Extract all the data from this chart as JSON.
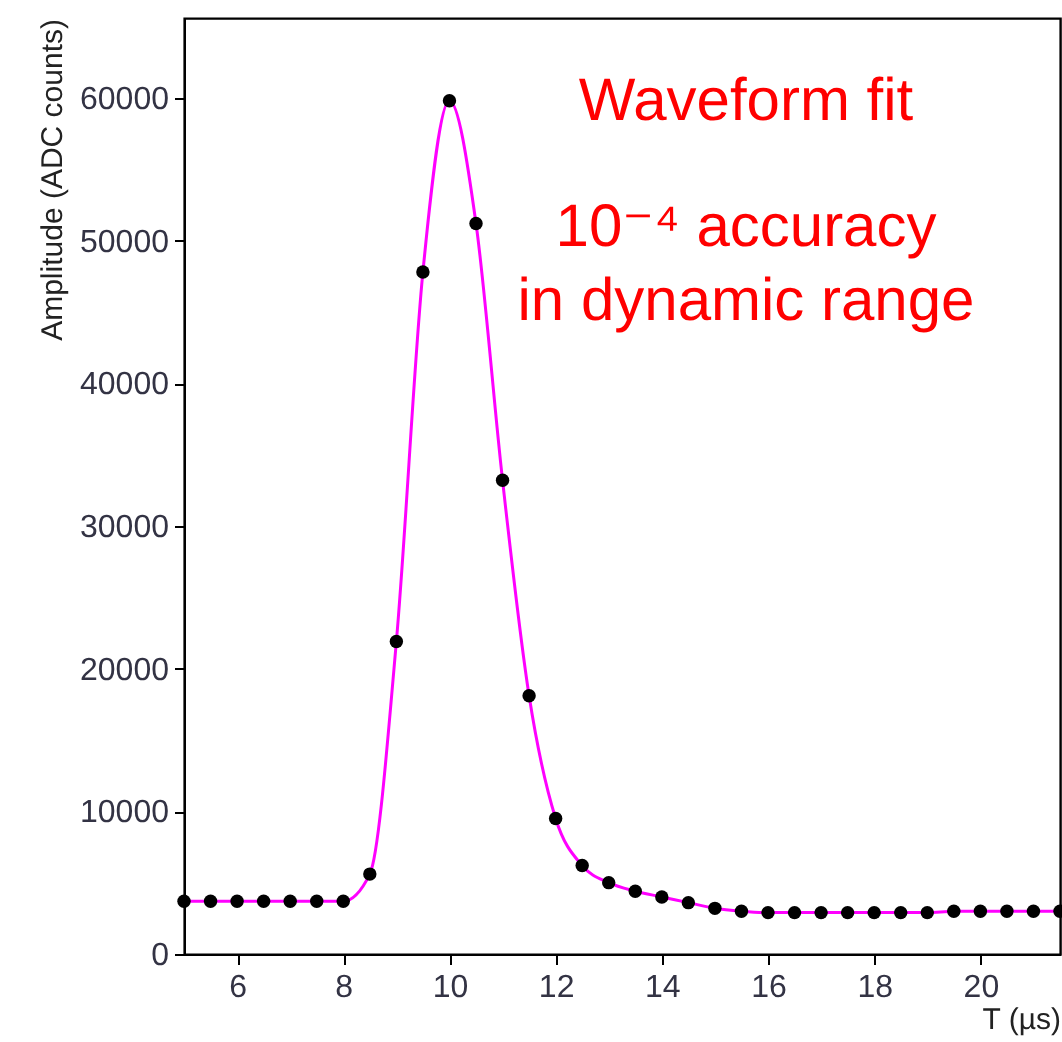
{
  "chart_data": {
    "type": "scatter",
    "xlabel": "T (µs)",
    "ylabel": "Amplitude (ADC counts)",
    "annotations": [
      "Waveform fit",
      "10⁻⁴ accuracy",
      "in dynamic range"
    ],
    "x": [
      5,
      5.5,
      6,
      6.5,
      7,
      7.5,
      8,
      8.5,
      9,
      9.5,
      10,
      10.5,
      11,
      11.5,
      12,
      12.5,
      13,
      13.5,
      14,
      14.5,
      15,
      15.5,
      16,
      16.5,
      17,
      17.5,
      18,
      18.5,
      19,
      19.5,
      20,
      20.5,
      21,
      21.5
    ],
    "series": [
      {
        "type": "line",
        "color": "#ff00ff",
        "values": [
          3700,
          3700,
          3700,
          3700,
          3700,
          3700,
          3700,
          5600,
          21900,
          47800,
          59800,
          51200,
          33200,
          18100,
          9500,
          6200,
          5000,
          4400,
          4000,
          3600,
          3200,
          3000,
          2900,
          2900,
          2900,
          2900,
          2900,
          2900,
          2900,
          3000,
          3000,
          3000,
          3000,
          3000
        ]
      },
      {
        "color": "#000000",
        "values": [
          3700,
          3700,
          3700,
          3700,
          3700,
          3700,
          3700,
          5600,
          21900,
          47800,
          59800,
          51200,
          33200,
          18100,
          9500,
          6200,
          5000,
          4400,
          4000,
          3600,
          3200,
          3000,
          2900,
          2900,
          2900,
          2900,
          2900,
          2900,
          2900,
          3000,
          3000,
          3000,
          3000,
          3000
        ]
      }
    ],
    "xlim": [
      5,
      21.5
    ],
    "xticks": [
      6,
      8,
      10,
      12,
      14,
      16,
      18,
      20
    ],
    "ylim": [
      0,
      65600
    ],
    "yticks": [
      0,
      10000,
      20000,
      30000,
      40000,
      50000,
      60000
    ]
  }
}
